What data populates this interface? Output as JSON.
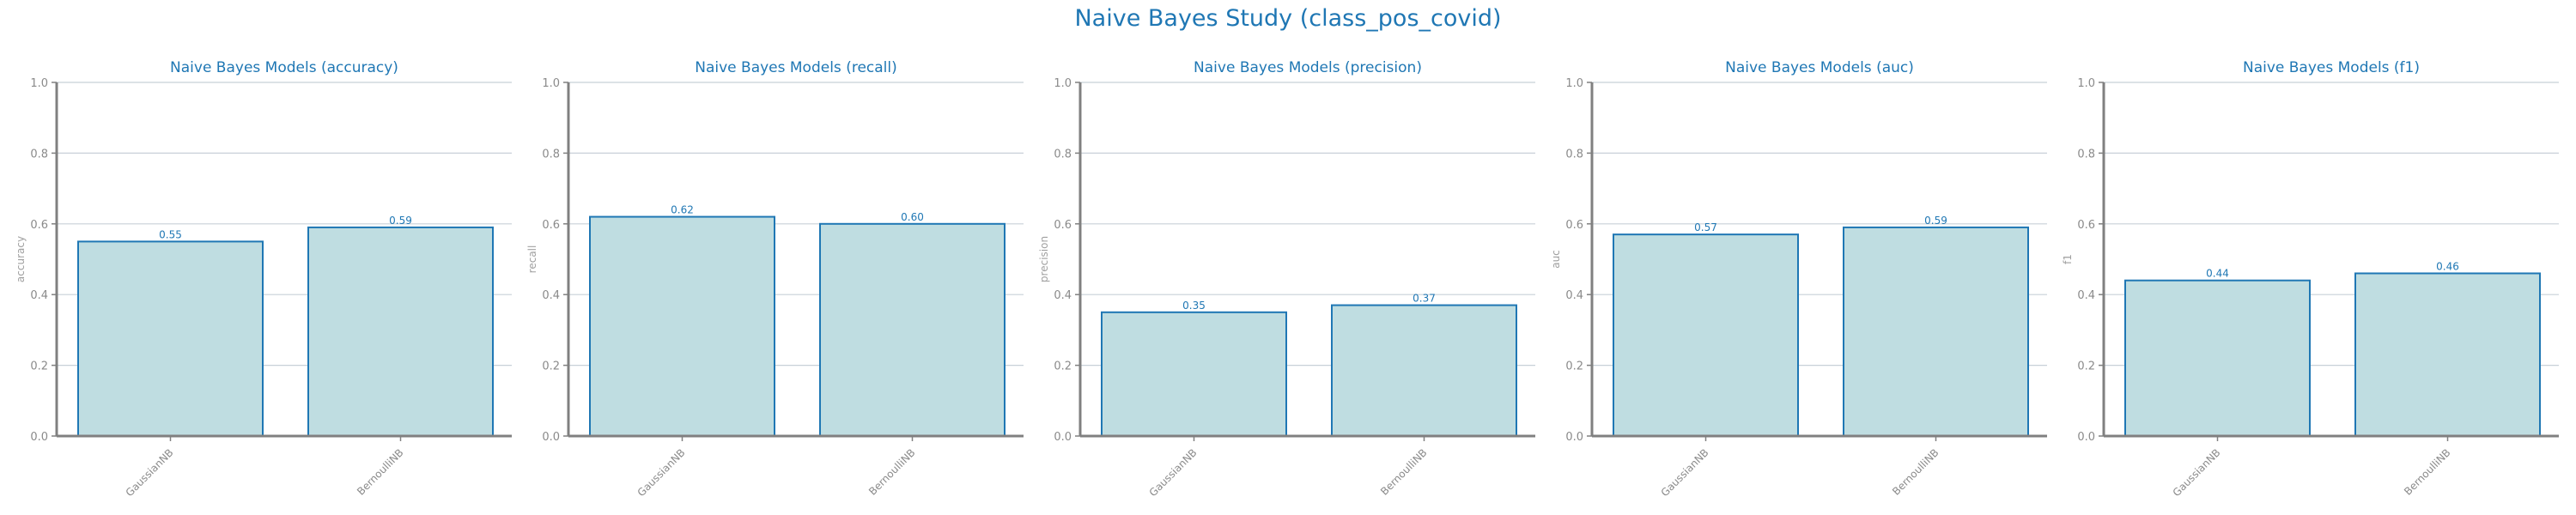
{
  "title": "Naive Bayes Study (class_pos_covid)",
  "colors": {
    "bar_fill": "#bfdde1",
    "bar_edge": "#1f77b4",
    "title": "#1f77b4",
    "grid": "#c8d0d8",
    "axis": "#808080"
  },
  "chart_data": [
    {
      "type": "bar",
      "title": "Naive Bayes Models (accuracy)",
      "xlabel": "",
      "ylabel": "accuracy",
      "categories": [
        "GaussianNB",
        "BernoulliNB"
      ],
      "values": [
        0.55,
        0.59
      ],
      "value_labels": [
        "0.55",
        "0.59"
      ],
      "ylim": [
        0,
        1.0
      ],
      "yticks": [
        "0.0",
        "0.2",
        "0.4",
        "0.6",
        "0.8",
        "1.0"
      ],
      "grid": true
    },
    {
      "type": "bar",
      "title": "Naive Bayes Models (recall)",
      "xlabel": "",
      "ylabel": "recall",
      "categories": [
        "GaussianNB",
        "BernoulliNB"
      ],
      "values": [
        0.62,
        0.6
      ],
      "value_labels": [
        "0.62",
        "0.60"
      ],
      "ylim": [
        0,
        1.0
      ],
      "yticks": [
        "0.0",
        "0.2",
        "0.4",
        "0.6",
        "0.8",
        "1.0"
      ],
      "grid": true
    },
    {
      "type": "bar",
      "title": "Naive Bayes Models (precision)",
      "xlabel": "",
      "ylabel": "precision",
      "categories": [
        "GaussianNB",
        "BernoulliNB"
      ],
      "values": [
        0.35,
        0.37
      ],
      "value_labels": [
        "0.35",
        "0.37"
      ],
      "ylim": [
        0,
        1.0
      ],
      "yticks": [
        "0.0",
        "0.2",
        "0.4",
        "0.6",
        "0.8",
        "1.0"
      ],
      "grid": true
    },
    {
      "type": "bar",
      "title": "Naive Bayes Models (auc)",
      "xlabel": "",
      "ylabel": "auc",
      "categories": [
        "GaussianNB",
        "BernoulliNB"
      ],
      "values": [
        0.57,
        0.59
      ],
      "value_labels": [
        "0.57",
        "0.59"
      ],
      "ylim": [
        0,
        1.0
      ],
      "yticks": [
        "0.0",
        "0.2",
        "0.4",
        "0.6",
        "0.8",
        "1.0"
      ],
      "grid": true
    },
    {
      "type": "bar",
      "title": "Naive Bayes Models (f1)",
      "xlabel": "",
      "ylabel": "f1",
      "categories": [
        "GaussianNB",
        "BernoulliNB"
      ],
      "values": [
        0.44,
        0.46
      ],
      "value_labels": [
        "0.44",
        "0.46"
      ],
      "ylim": [
        0,
        1.0
      ],
      "yticks": [
        "0.0",
        "0.2",
        "0.4",
        "0.6",
        "0.8",
        "1.0"
      ],
      "grid": true
    }
  ]
}
